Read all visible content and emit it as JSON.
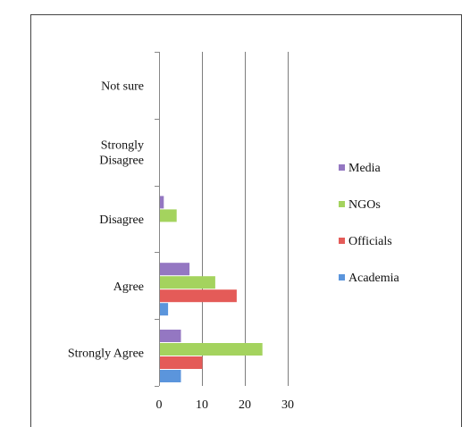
{
  "chart_data": {
    "type": "bar",
    "orientation": "horizontal",
    "categories": [
      "Strongly Agree",
      "Agree",
      "Disagree",
      "Strongly Disagree",
      "Not sure"
    ],
    "category_labels": [
      [
        "Strongly Agree"
      ],
      [
        "Agree"
      ],
      [
        "Disagree"
      ],
      [
        "Strongly",
        "Disagree"
      ],
      [
        "Not sure"
      ]
    ],
    "series": [
      {
        "name": "Academia",
        "color": "#5b95dc",
        "values": [
          5,
          2,
          0,
          0,
          0
        ]
      },
      {
        "name": "Officials",
        "color": "#e45b58",
        "values": [
          10,
          18,
          0,
          0,
          0
        ]
      },
      {
        "name": "NGOs",
        "color": "#a4d35e",
        "values": [
          24,
          13,
          4,
          0,
          0
        ]
      },
      {
        "name": "Media",
        "color": "#9477c2",
        "values": [
          5,
          7,
          1,
          0,
          0
        ]
      }
    ],
    "xlim": [
      0,
      30
    ],
    "xticks": [
      0,
      10,
      20,
      30
    ],
    "grid": "vertical",
    "legend": {
      "position": "right",
      "order": [
        "Media",
        "NGOs",
        "Officials",
        "Academia"
      ]
    },
    "title": "",
    "xlabel": "",
    "ylabel": ""
  }
}
